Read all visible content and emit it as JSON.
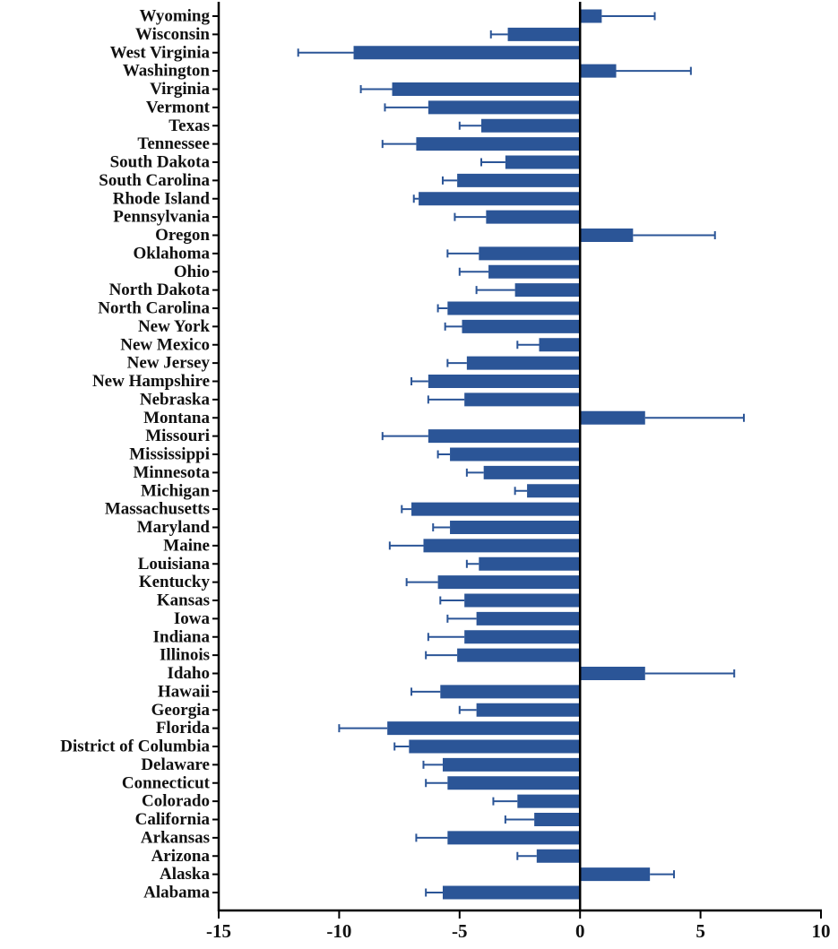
{
  "chart_data": {
    "type": "bar",
    "orientation": "horizontal",
    "title": "",
    "xlabel": "",
    "ylabel": "",
    "xlim": [
      -15,
      10
    ],
    "xticks": [
      -15,
      -10,
      -5,
      0,
      5,
      10
    ],
    "xtick_labels": [
      "-15",
      "-10",
      "-5",
      "0",
      "5",
      "10"
    ],
    "grid": false,
    "bar_color": "#2b5597",
    "errorbar_color": "#2b5597",
    "axis_color": "#000000",
    "categories": [
      "Wyoming",
      "Wisconsin",
      "West Virginia",
      "Washington",
      "Virginia",
      "Vermont",
      "Texas",
      "Tennessee",
      "South Dakota",
      "South Carolina",
      "Rhode Island",
      "Pennsylvania",
      "Oregon",
      "Oklahoma",
      "Ohio",
      "North Dakota",
      "North Carolina",
      "New York",
      "New Mexico",
      "New Jersey",
      "New Hampshire",
      "Nebraska",
      "Montana",
      "Missouri",
      "Mississippi",
      "Minnesota",
      "Michigan",
      "Massachusetts",
      "Maryland",
      "Maine",
      "Louisiana",
      "Kentucky",
      "Kansas",
      "Iowa",
      "Indiana",
      "Illinois",
      "Idaho",
      "Hawaii",
      "Georgia",
      "Florida",
      "District of Columbia",
      "Delaware",
      "Connecticut",
      "Colorado",
      "California",
      "Arkansas",
      "Arizona",
      "Alaska",
      "Alabama"
    ],
    "values": [
      0.9,
      -3.0,
      -9.4,
      1.5,
      -7.8,
      -6.3,
      -4.1,
      -6.8,
      -3.1,
      -5.1,
      -6.7,
      -3.9,
      2.2,
      -4.2,
      -3.8,
      -2.7,
      -5.5,
      -4.9,
      -1.7,
      -4.7,
      -6.3,
      -4.8,
      2.7,
      -6.3,
      -5.4,
      -4.0,
      -2.2,
      -7.0,
      -5.4,
      -6.5,
      -4.2,
      -5.9,
      -4.8,
      -4.3,
      -4.8,
      -5.1,
      2.7,
      -5.8,
      -4.3,
      -8.0,
      -7.1,
      -5.7,
      -5.5,
      -2.6,
      -1.9,
      -5.5,
      -1.8,
      2.9,
      -5.7
    ],
    "error_bar_ends": [
      3.1,
      -3.7,
      -11.7,
      4.6,
      -9.1,
      -8.1,
      -5.0,
      -8.2,
      -4.1,
      -5.7,
      -6.9,
      -5.2,
      5.6,
      -5.5,
      -5.0,
      -4.3,
      -5.9,
      -5.6,
      -2.6,
      -5.5,
      -7.0,
      -6.3,
      6.8,
      -8.2,
      -5.9,
      -4.7,
      -2.7,
      -7.4,
      -6.1,
      -7.9,
      -4.7,
      -7.2,
      -5.8,
      -5.5,
      -6.3,
      -6.4,
      6.4,
      -7.0,
      -5.0,
      -10.0,
      -7.7,
      -6.5,
      -6.4,
      -3.6,
      -3.1,
      -6.8,
      -2.6,
      3.9,
      -6.4
    ]
  }
}
